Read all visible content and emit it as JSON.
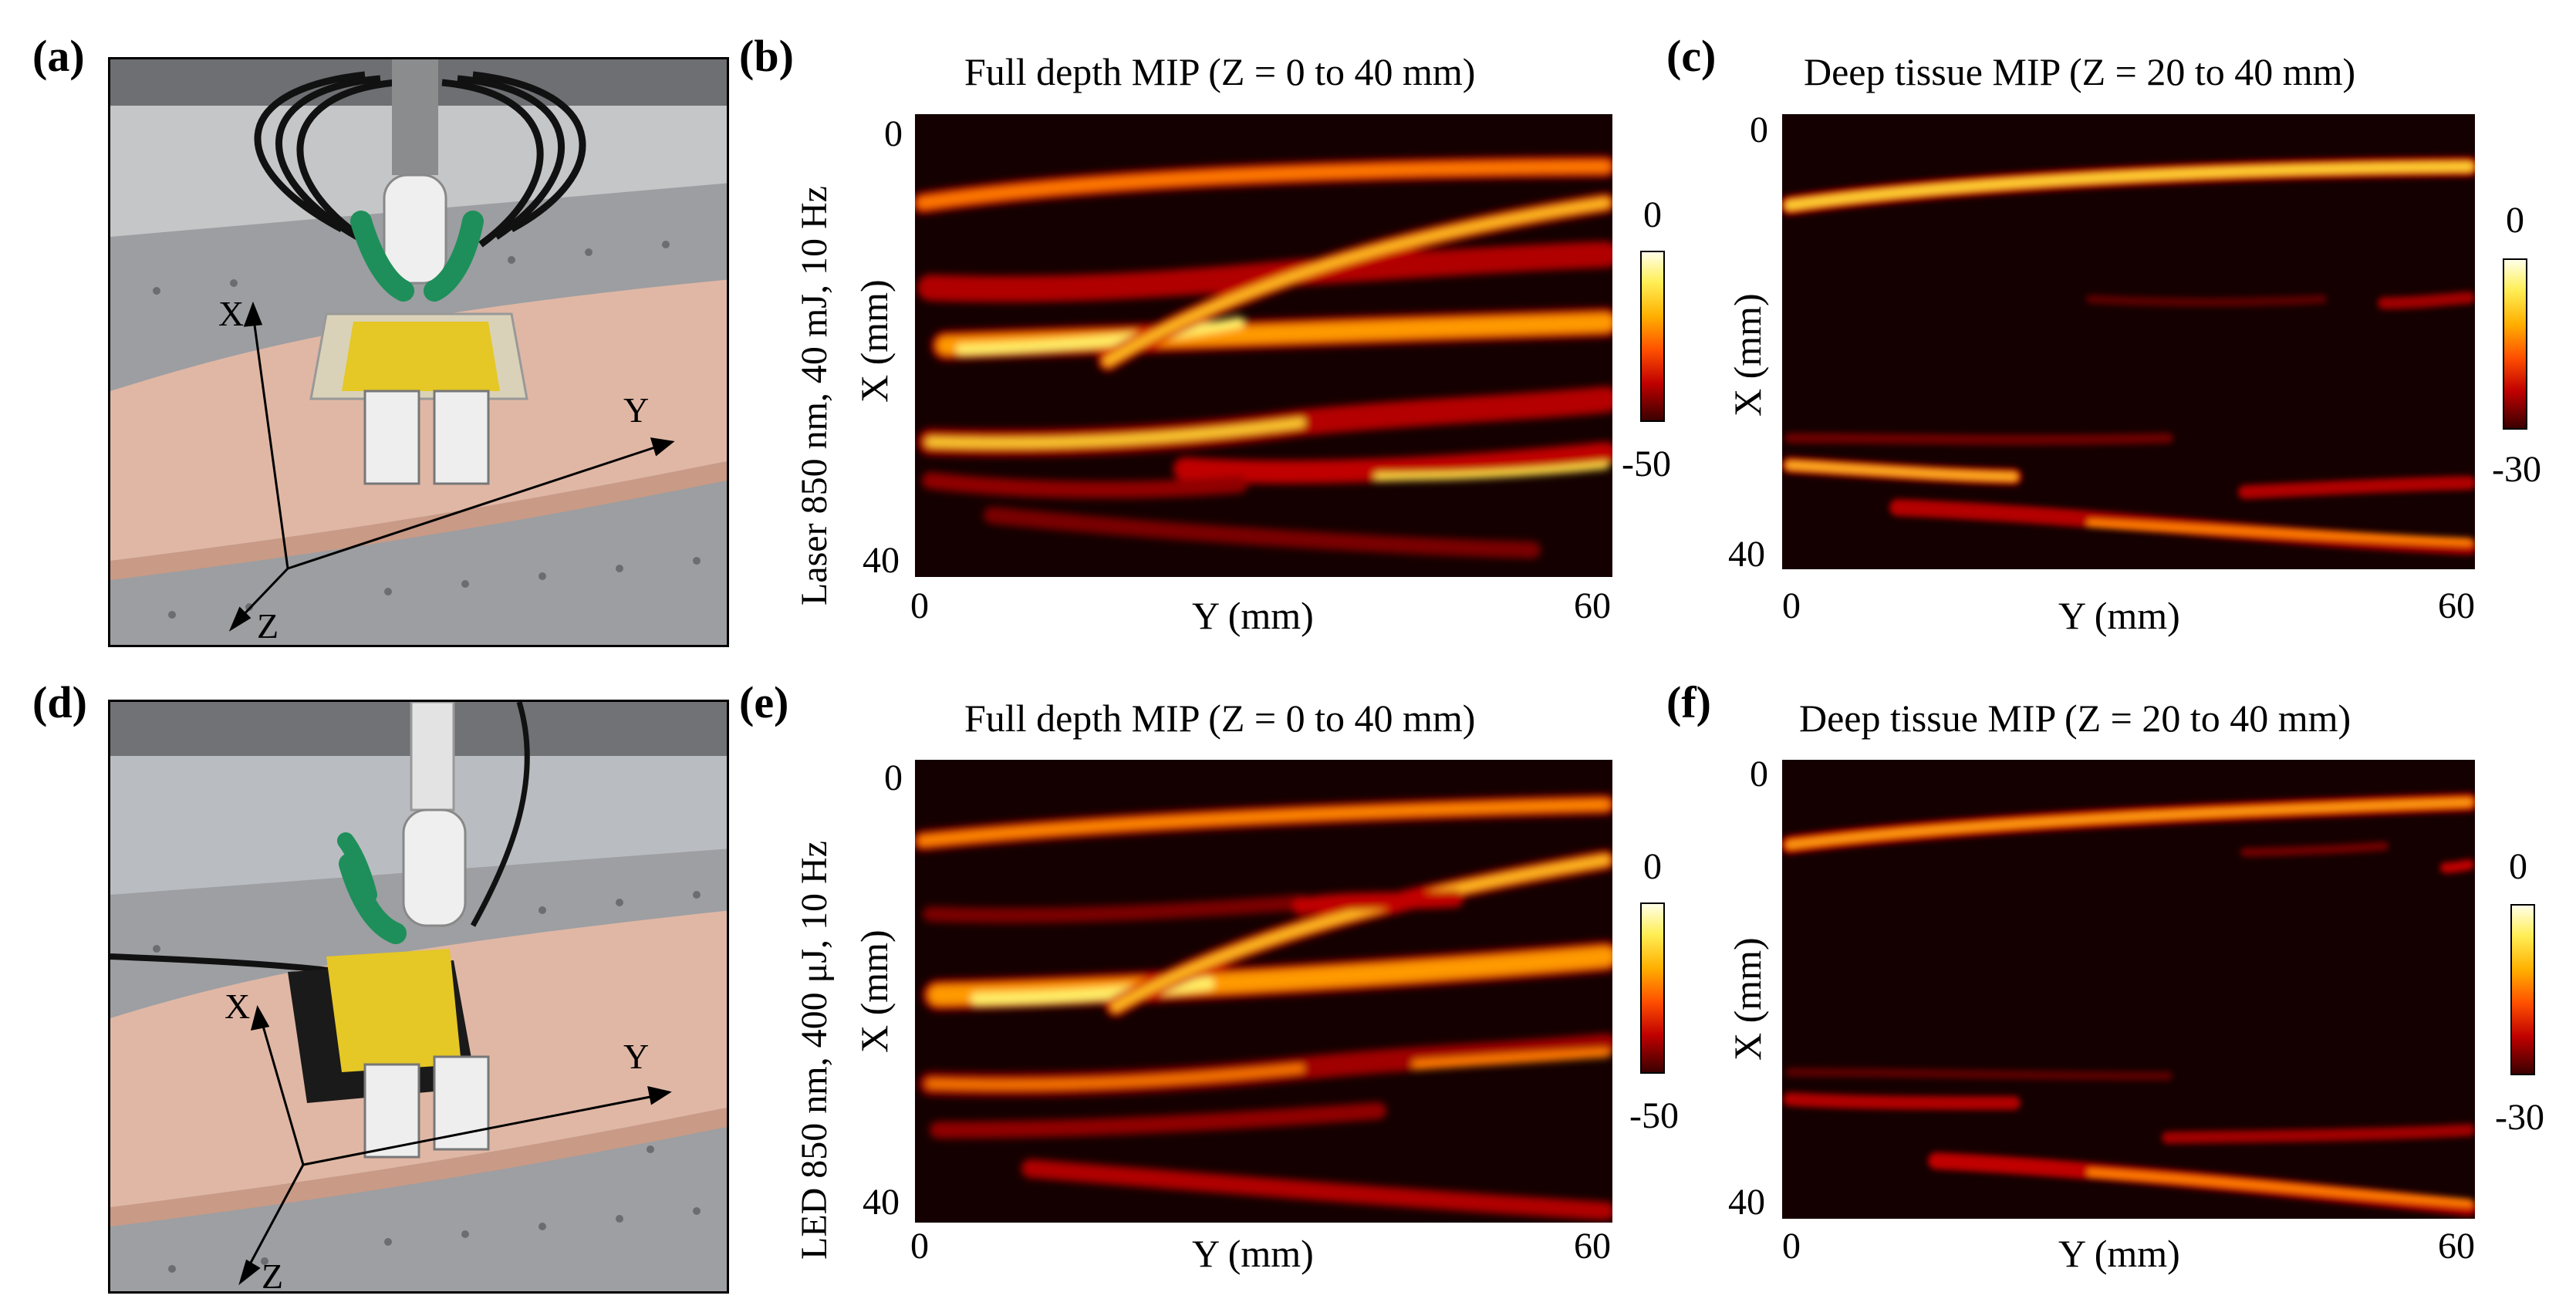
{
  "figure": {
    "rows": [
      {
        "photo": {
          "panel_label": "(a)",
          "axes": {
            "x": "X",
            "y": "Y",
            "z": "Z"
          }
        },
        "row_label": "Laser 850 nm, 40 mJ, 10 Hz",
        "full": {
          "panel_label": "(b)",
          "title": "Full depth MIP (Z = 0 to 40 mm)",
          "xlabel": "Y (mm)",
          "ylabel": "X (mm)",
          "xticks": [
            "0",
            "60"
          ],
          "yticks": [
            "0",
            "40"
          ],
          "colorbar": {
            "max": "0",
            "min": "-50"
          }
        },
        "deep": {
          "panel_label": "(c)",
          "title": "Deep tissue MIP (Z = 20 to 40 mm)",
          "xlabel": "Y (mm)",
          "ylabel": "X (mm)",
          "xticks": [
            "0",
            "60"
          ],
          "yticks": [
            "0",
            "40"
          ],
          "colorbar": {
            "max": "0",
            "min": "-30"
          }
        }
      },
      {
        "photo": {
          "panel_label": "(d)",
          "axes": {
            "x": "X",
            "y": "Y",
            "z": "Z"
          }
        },
        "row_label": "LED 850 nm, 400 μJ, 10 Hz",
        "full": {
          "panel_label": "(e)",
          "title": "Full depth MIP (Z = 0 to 40 mm)",
          "xlabel": "Y (mm)",
          "ylabel": "X (mm)",
          "xticks": [
            "0",
            "60"
          ],
          "yticks": [
            "0",
            "40"
          ],
          "colorbar": {
            "max": "0",
            "min": "-50"
          }
        },
        "deep": {
          "panel_label": "(f)",
          "title": "Deep tissue MIP (Z = 20 to 40 mm)",
          "xlabel": "Y (mm)",
          "ylabel": "X (mm)",
          "xticks": [
            "0",
            "60"
          ],
          "yticks": [
            "0",
            "40"
          ],
          "colorbar": {
            "max": "0",
            "min": "-30"
          }
        }
      }
    ],
    "colors": {
      "heat_background": "#140000",
      "vessel_core": "#ffee66",
      "vessel_mid": "#ff7a00",
      "vessel_edge": "#b00000"
    }
  }
}
